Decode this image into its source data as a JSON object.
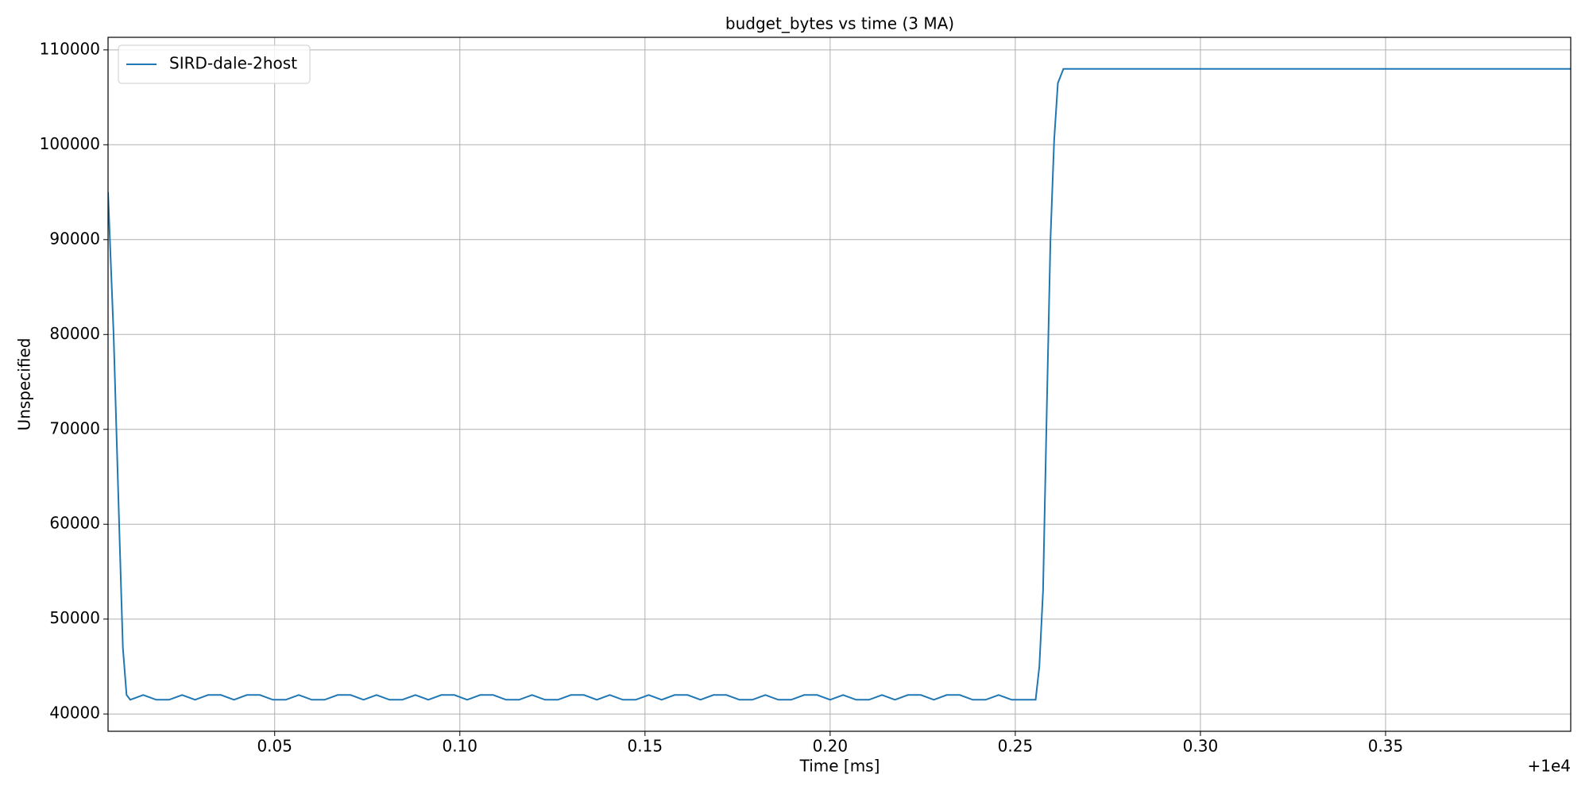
{
  "chart_data": {
    "type": "line",
    "title": "budget_bytes vs time (3 MA)",
    "x_label": "Time [ms]",
    "y_label": "Unspecified",
    "x_offset_label": "+1e4",
    "grid": true,
    "legend": "upper left",
    "xlim": [
      10000.005,
      10000.4
    ],
    "ylim": [
      38175,
      111325
    ],
    "xticks": [
      {
        "value": 10000.05,
        "label": "0.05"
      },
      {
        "value": 10000.1,
        "label": "0.10"
      },
      {
        "value": 10000.15,
        "label": "0.15"
      },
      {
        "value": 10000.2,
        "label": "0.20"
      },
      {
        "value": 10000.25,
        "label": "0.25"
      },
      {
        "value": 10000.3,
        "label": "0.30"
      },
      {
        "value": 10000.35,
        "label": "0.35"
      }
    ],
    "yticks": [
      40000,
      50000,
      60000,
      70000,
      80000,
      90000,
      100000,
      110000
    ],
    "x": [
      10000.005,
      10000.0065,
      10000.008,
      10000.009,
      10000.01,
      10000.011,
      10000.0145,
      10000.018,
      10000.0215,
      10000.025,
      10000.0285,
      10000.032,
      10000.0355,
      10000.039,
      10000.0425,
      10000.046,
      10000.0495,
      10000.053,
      10000.0565,
      10000.06,
      10000.0635,
      10000.067,
      10000.0705,
      10000.074,
      10000.0775,
      10000.081,
      10000.0845,
      10000.088,
      10000.0915,
      10000.095,
      10000.0985,
      10000.102,
      10000.1055,
      10000.109,
      10000.1125,
      10000.116,
      10000.1195,
      10000.123,
      10000.1265,
      10000.13,
      10000.1335,
      10000.137,
      10000.1405,
      10000.144,
      10000.1475,
      10000.151,
      10000.1545,
      10000.158,
      10000.1615,
      10000.165,
      10000.1685,
      10000.172,
      10000.1755,
      10000.179,
      10000.1825,
      10000.186,
      10000.1895,
      10000.193,
      10000.1965,
      10000.2,
      10000.2035,
      10000.207,
      10000.2105,
      10000.214,
      10000.2175,
      10000.221,
      10000.2245,
      10000.228,
      10000.2315,
      10000.235,
      10000.2385,
      10000.242,
      10000.2455,
      10000.249,
      10000.2525,
      10000.2555,
      10000.2565,
      10000.2575,
      10000.2585,
      10000.2595,
      10000.2605,
      10000.2615,
      10000.263,
      10000.28,
      10000.4
    ],
    "series": [
      {
        "name": "SIRD-dale-2host",
        "color": "#1f77b4",
        "values": [
          95000,
          80000,
          60000,
          47000,
          42000,
          41500,
          42000,
          41500,
          41500,
          42000,
          41500,
          42000,
          42000,
          41500,
          42000,
          42000,
          41500,
          41500,
          42000,
          41500,
          41500,
          42000,
          42000,
          41500,
          42000,
          41500,
          41500,
          42000,
          41500,
          42000,
          42000,
          41500,
          42000,
          42000,
          41500,
          41500,
          42000,
          41500,
          41500,
          42000,
          42000,
          41500,
          42000,
          41500,
          41500,
          42000,
          41500,
          42000,
          42000,
          41500,
          42000,
          42000,
          41500,
          41500,
          42000,
          41500,
          41500,
          42000,
          42000,
          41500,
          42000,
          41500,
          41500,
          42000,
          41500,
          42000,
          42000,
          41500,
          42000,
          42000,
          41500,
          41500,
          42000,
          41500,
          41500,
          41500,
          45000,
          53000,
          72000,
          90000,
          100500,
          106500,
          108000,
          108000,
          108000
        ]
      }
    ]
  }
}
